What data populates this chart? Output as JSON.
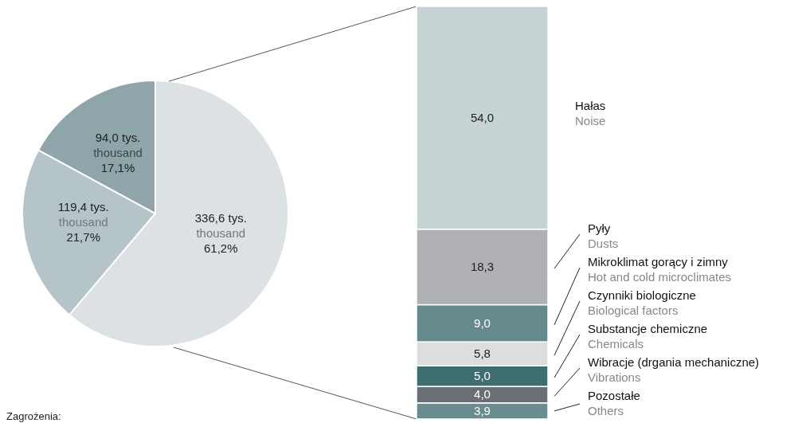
{
  "chart_data": [
    {
      "type": "pie",
      "categories": [
        null,
        null,
        null
      ],
      "values": [
        336.6,
        119.4,
        94.0
      ],
      "colors": [
        "#dce1e4",
        "#b4c4c8",
        "#8ea6aa"
      ],
      "value_labels": [
        "336,6 tys.\nthousand\n61,2%",
        "119,4 tys.\nthousand\n21,7%",
        "94,0 tys.\nthousand\n17,1%"
      ],
      "annotations": [
        "Zagrożenia:"
      ]
    },
    {
      "type": "bar",
      "stacked": true,
      "categories": [
        null
      ],
      "legend": "right",
      "series": [
        {
          "name": "Pozostałe\nOthers",
          "color": "#6a8c8f",
          "values": [
            3.9
          ],
          "value_labels": [
            "3,9"
          ]
        },
        {
          "name": "Wibracje (drgania mechaniczne)\nVibrations",
          "color": "#6b6e72",
          "values": [
            4.0
          ],
          "value_labels": [
            "4,0"
          ]
        },
        {
          "name": "Substancje chemiczne\nChemicals",
          "color": "#3f6e72",
          "values": [
            5.0
          ],
          "value_labels": [
            "5,0"
          ]
        },
        {
          "name": "Czynniki biologiczne\nBiological factors",
          "color": "#dcdddf",
          "values": [
            5.8
          ],
          "value_labels": [
            "5,8"
          ]
        },
        {
          "name": "Mikroklimat gorący i zimny\nHot and cold microclimates",
          "color": "#648a8c",
          "values": [
            9.0
          ],
          "value_labels": [
            "9,0"
          ]
        },
        {
          "name": "Pyły\nDusts",
          "color": "#b0b1b4",
          "values": [
            18.3
          ],
          "value_labels": [
            "18,3"
          ]
        },
        {
          "name": "Hałas\nNoise",
          "color": "#c5d3d4",
          "values": [
            54.0
          ],
          "value_labels": [
            "54,0"
          ]
        }
      ]
    }
  ]
}
